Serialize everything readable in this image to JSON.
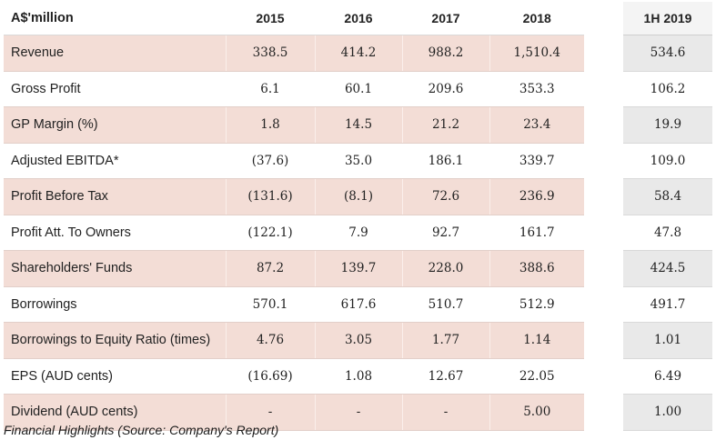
{
  "table": {
    "header": {
      "label": "A$'million",
      "years": [
        "2015",
        "2016",
        "2017",
        "2018"
      ],
      "interim": "1H 2019"
    },
    "rows": [
      {
        "label": "Revenue",
        "values": [
          "338.5",
          "414.2",
          "988.2",
          "1,510.4"
        ],
        "interim": "534.6"
      },
      {
        "label": "Gross Profit",
        "values": [
          "6.1",
          "60.1",
          "209.6",
          "353.3"
        ],
        "interim": "106.2"
      },
      {
        "label": "GP Margin (%)",
        "values": [
          "1.8",
          "14.5",
          "21.2",
          "23.4"
        ],
        "interim": "19.9"
      },
      {
        "label": "Adjusted EBITDA*",
        "values": [
          "(37.6)",
          "35.0",
          "186.1",
          "339.7"
        ],
        "interim": "109.0"
      },
      {
        "label": "Profit Before Tax",
        "values": [
          "(131.6)",
          "(8.1)",
          "72.6",
          "236.9"
        ],
        "interim": "58.4"
      },
      {
        "label": "Profit Att. To Owners",
        "values": [
          "(122.1)",
          "7.9",
          "92.7",
          "161.7"
        ],
        "interim": "47.8"
      },
      {
        "label": "Shareholders' Funds",
        "values": [
          "87.2",
          "139.7",
          "228.0",
          "388.6"
        ],
        "interim": "424.5"
      },
      {
        "label": "Borrowings",
        "values": [
          "570.1",
          "617.6",
          "510.7",
          "512.9"
        ],
        "interim": "491.7"
      },
      {
        "label": "Borrowings to Equity Ratio (times)",
        "values": [
          "4.76",
          "3.05",
          "1.77",
          "1.14"
        ],
        "interim": "1.01"
      },
      {
        "label": "EPS (AUD cents)",
        "values": [
          "(16.69)",
          "1.08",
          "12.67",
          "22.05"
        ],
        "interim": "6.49"
      },
      {
        "label": "Dividend (AUD cents)",
        "values": [
          "-",
          "-",
          "-",
          "5.00"
        ],
        "interim": "1.00"
      }
    ]
  },
  "caption": "Financial Highlights (Source: Company's Report)",
  "colors": {
    "row_shade": "#f3ddd6",
    "interim_shade": "#e9e9e9"
  }
}
